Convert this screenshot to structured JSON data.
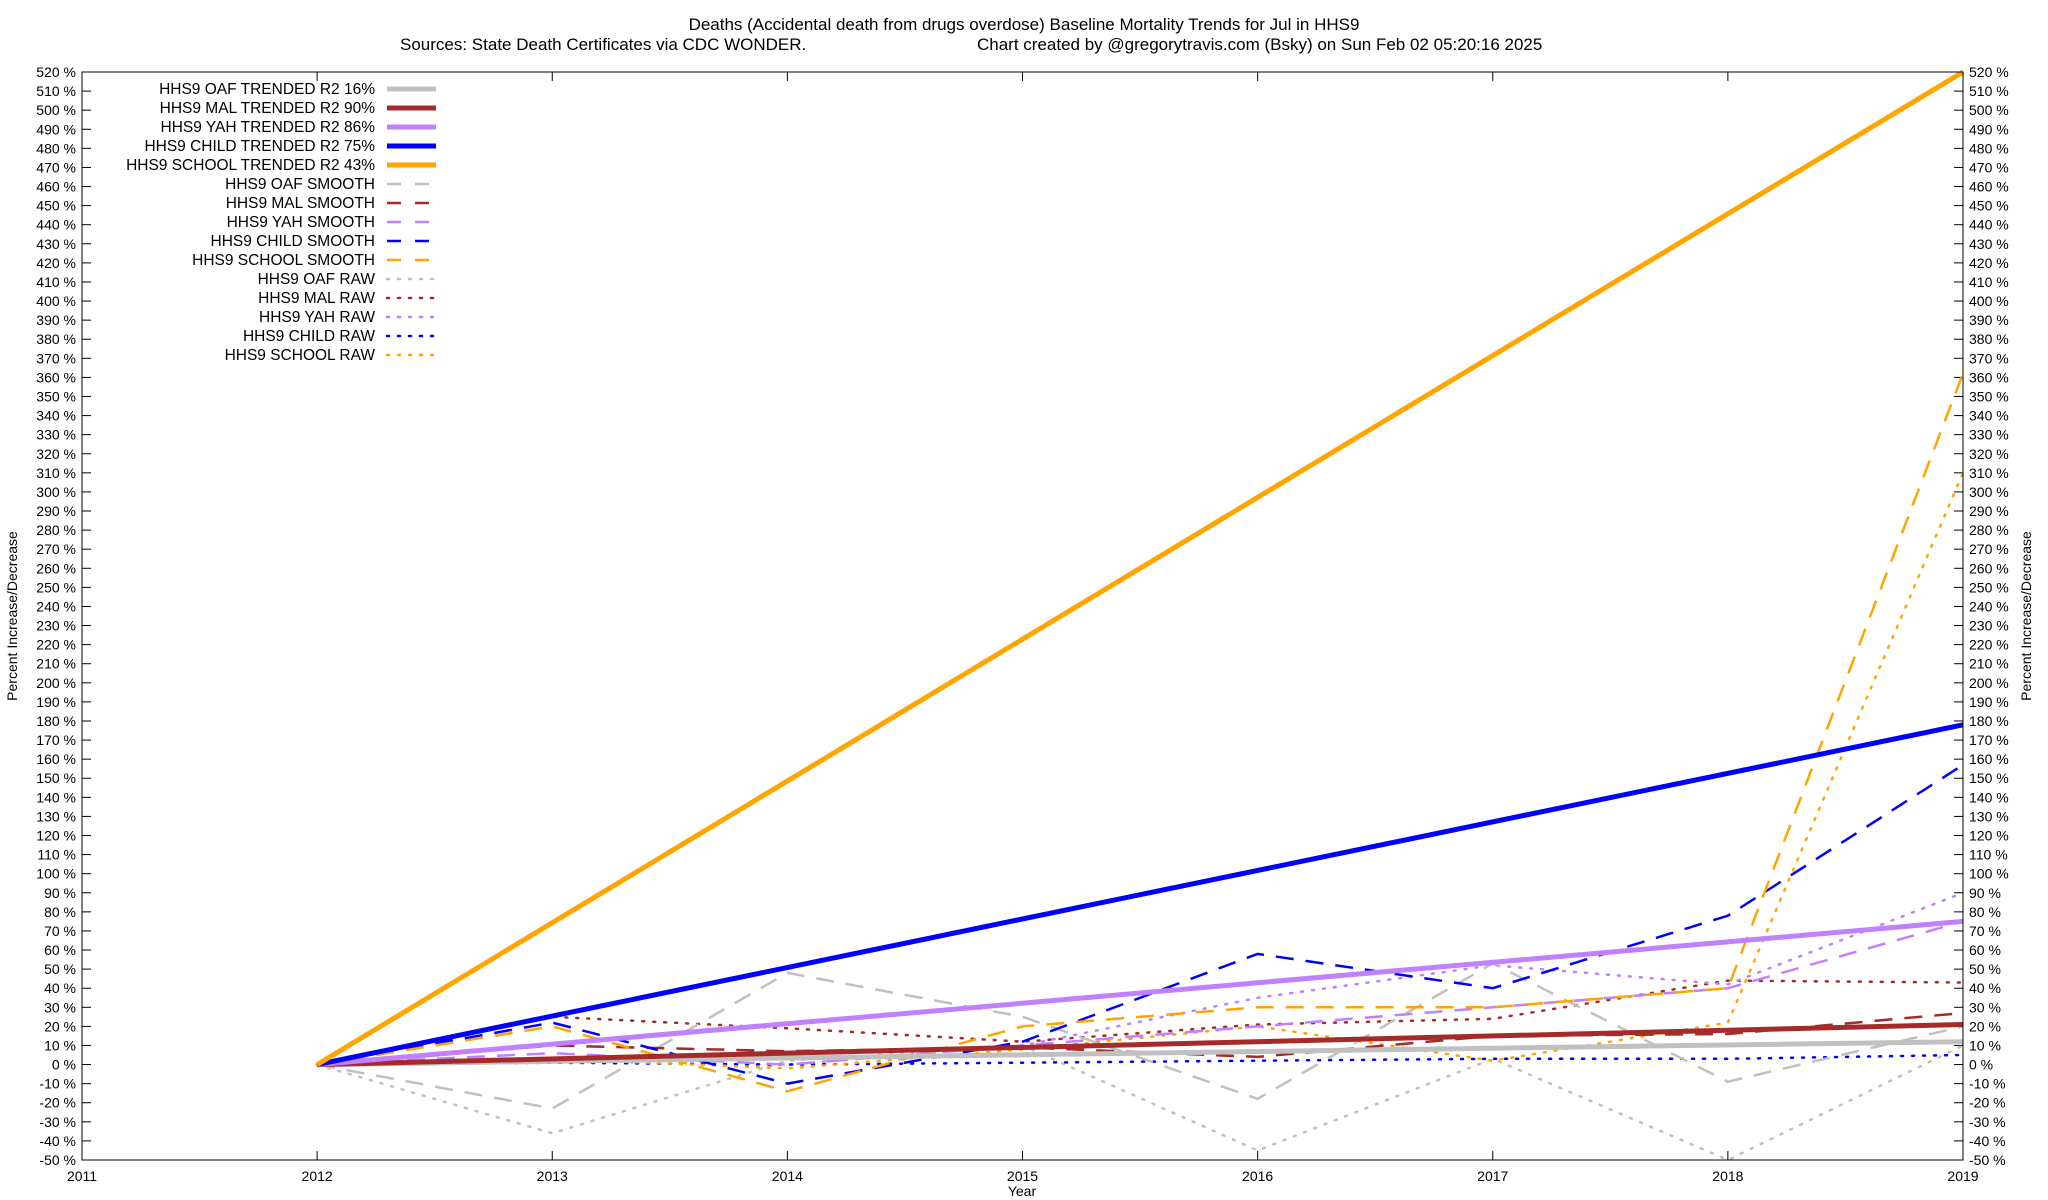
{
  "chart_data": {
    "type": "line",
    "title": "Deaths (Accidental death from drugs overdose)  Baseline Mortality Trends for Jul in HHS9",
    "subtitle_left": "Sources: State Death Certificates via CDC WONDER.",
    "subtitle_right": "Chart created by @gregorytravis.com (Bsky) on Sun Feb 02 05:20:16 2025",
    "xlabel": "Year",
    "ylabel_left": "Percent Increase/Decrease",
    "ylabel_right": "Percent Increase/Decrease",
    "xlim": [
      2011,
      2019
    ],
    "ylim": [
      -50,
      520
    ],
    "x_ticks": [
      2011,
      2012,
      2013,
      2014,
      2015,
      2016,
      2017,
      2018,
      2019
    ],
    "y_tick_step": 10,
    "y_tick_suffix": " %",
    "grid": false,
    "legend_position": "top-left",
    "series": [
      {
        "name": "HHS9 OAF TRENDED R2  16%",
        "style": "solid",
        "width": 5,
        "color": "#c0c0c0",
        "x": [
          2012,
          2019
        ],
        "y": [
          0,
          12
        ]
      },
      {
        "name": "HHS9 MAL TRENDED R2  90%",
        "style": "solid",
        "width": 5,
        "color": "#a52a2a",
        "x": [
          2012,
          2019
        ],
        "y": [
          0,
          21
        ]
      },
      {
        "name": "HHS9 YAH TRENDED R2  86%",
        "style": "solid",
        "width": 5,
        "color": "#c080ff",
        "x": [
          2012,
          2019
        ],
        "y": [
          0,
          75
        ]
      },
      {
        "name": "HHS9 CHILD TRENDED R2  75%",
        "style": "solid",
        "width": 5,
        "color": "#0000ff",
        "x": [
          2012,
          2019
        ],
        "y": [
          0,
          178
        ]
      },
      {
        "name": "HHS9 SCHOOL TRENDED R2  43%",
        "style": "solid",
        "width": 5,
        "color": "#ffa500",
        "x": [
          2012,
          2019
        ],
        "y": [
          0,
          520
        ]
      },
      {
        "name": "HHS9 OAF SMOOTH",
        "style": "dashed",
        "width": 2.5,
        "color": "#c0c0c0",
        "x": [
          2012,
          2013,
          2014,
          2015,
          2016,
          2017,
          2018,
          2019
        ],
        "y": [
          0,
          -23,
          48,
          25,
          -18,
          53,
          -9,
          20
        ]
      },
      {
        "name": "HHS9 MAL SMOOTH",
        "style": "dashed",
        "width": 2.5,
        "color": "#a52a2a",
        "x": [
          2012,
          2013,
          2014,
          2015,
          2016,
          2017,
          2018,
          2019
        ],
        "y": [
          0,
          10,
          7,
          9,
          4,
          15,
          16,
          27
        ]
      },
      {
        "name": "HHS9 YAH SMOOTH",
        "style": "dashed",
        "width": 2.5,
        "color": "#c080ff",
        "x": [
          2012,
          2013,
          2014,
          2015,
          2016,
          2017,
          2018,
          2019
        ],
        "y": [
          0,
          6,
          0,
          10,
          20,
          30,
          40,
          75
        ]
      },
      {
        "name": "HHS9 CHILD SMOOTH",
        "style": "dashed",
        "width": 2.5,
        "color": "#0000ff",
        "x": [
          2012,
          2013,
          2014,
          2015,
          2016,
          2017,
          2018,
          2019
        ],
        "y": [
          0,
          22,
          -10,
          12,
          58,
          40,
          78,
          157
        ]
      },
      {
        "name": "HHS9 SCHOOL SMOOTH",
        "style": "dashed",
        "width": 2.5,
        "color": "#ffa500",
        "x": [
          2012,
          2013,
          2014,
          2015,
          2016,
          2017,
          2018,
          2019
        ],
        "y": [
          0,
          20,
          -14,
          20,
          30,
          30,
          40,
          362
        ]
      },
      {
        "name": "HHS9 OAF RAW",
        "style": "dotted",
        "width": 2.5,
        "color": "#c0c0c0",
        "x": [
          2012,
          2013,
          2014,
          2015,
          2016,
          2017,
          2018,
          2019
        ],
        "y": [
          0,
          -36,
          2,
          10,
          -45,
          3,
          -50,
          10
        ]
      },
      {
        "name": "HHS9 MAL RAW",
        "style": "dotted",
        "width": 2.5,
        "color": "#a52a2a",
        "x": [
          2012,
          2013,
          2014,
          2015,
          2016,
          2017,
          2018,
          2019
        ],
        "y": [
          0,
          25,
          19,
          12,
          21,
          24,
          44,
          43
        ]
      },
      {
        "name": "HHS9 YAH RAW",
        "style": "dotted",
        "width": 2.5,
        "color": "#c080ff",
        "x": [
          2012,
          2013,
          2014,
          2015,
          2016,
          2017,
          2018,
          2019
        ],
        "y": [
          0,
          1,
          0,
          10,
          35,
          52,
          42,
          90
        ]
      },
      {
        "name": "HHS9 CHILD RAW",
        "style": "dotted",
        "width": 2.5,
        "color": "#0000ff",
        "x": [
          2012,
          2013,
          2014,
          2015,
          2016,
          2017,
          2018,
          2019
        ],
        "y": [
          0,
          1,
          0,
          1,
          2,
          3,
          3,
          5
        ]
      },
      {
        "name": "HHS9 SCHOOL RAW",
        "style": "dotted",
        "width": 2.5,
        "color": "#ffa500",
        "x": [
          2012,
          2013,
          2014,
          2015,
          2016,
          2017,
          2018,
          2019
        ],
        "y": [
          0,
          3,
          -2,
          8,
          20,
          2,
          22,
          310
        ]
      }
    ]
  }
}
